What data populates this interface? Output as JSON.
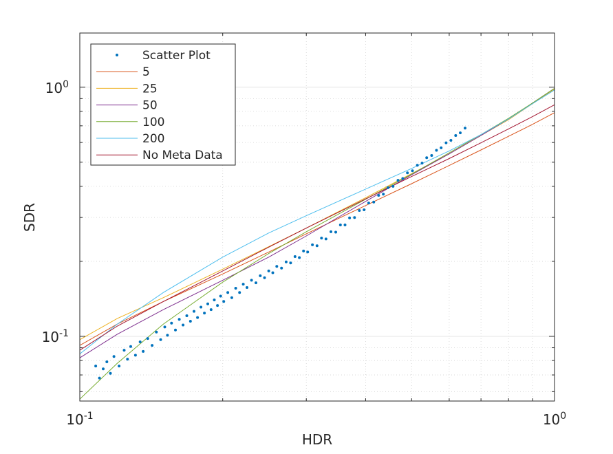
{
  "chart_data": {
    "type": "scatter+line",
    "title": "",
    "xlabel": "HDR",
    "ylabel": "SDR",
    "xscale": "log",
    "yscale": "log",
    "xlim": [
      0.1,
      1.0
    ],
    "ylim": [
      0.055,
      1.65
    ],
    "grid": true,
    "minor_grid": true,
    "legend_position": "top-left",
    "x_ticks": [
      {
        "value": 0.1,
        "base": "10",
        "exp": "-1"
      },
      {
        "value": 1.0,
        "base": "10",
        "exp": "0"
      }
    ],
    "y_ticks": [
      {
        "value": 0.1,
        "base": "10",
        "exp": "-1"
      },
      {
        "value": 1.0,
        "base": "10",
        "exp": "0"
      }
    ],
    "scatter": {
      "name": "Scatter Plot",
      "color": "#0072BD",
      "x": [
        0.108,
        0.11,
        0.112,
        0.114,
        0.116,
        0.118,
        0.121,
        0.124,
        0.126,
        0.128,
        0.131,
        0.134,
        0.136,
        0.139,
        0.142,
        0.145,
        0.148,
        0.151,
        0.153,
        0.156,
        0.159,
        0.162,
        0.165,
        0.168,
        0.171,
        0.174,
        0.177,
        0.18,
        0.183,
        0.186,
        0.189,
        0.192,
        0.195,
        0.198,
        0.201,
        0.205,
        0.209,
        0.213,
        0.217,
        0.221,
        0.225,
        0.23,
        0.235,
        0.24,
        0.245,
        0.25,
        0.255,
        0.26,
        0.266,
        0.272,
        0.278,
        0.284,
        0.29,
        0.296,
        0.302,
        0.309,
        0.316,
        0.323,
        0.33,
        0.338,
        0.346,
        0.354,
        0.362,
        0.37,
        0.379,
        0.388,
        0.397,
        0.406,
        0.416,
        0.426,
        0.436,
        0.446,
        0.457,
        0.468,
        0.479,
        0.49,
        0.502,
        0.514,
        0.526,
        0.538,
        0.551,
        0.564,
        0.577,
        0.591,
        0.605,
        0.619,
        0.633,
        0.648
      ],
      "y": [
        0.076,
        0.068,
        0.074,
        0.079,
        0.071,
        0.083,
        0.076,
        0.088,
        0.081,
        0.091,
        0.084,
        0.095,
        0.087,
        0.098,
        0.092,
        0.104,
        0.097,
        0.109,
        0.101,
        0.113,
        0.106,
        0.117,
        0.111,
        0.121,
        0.115,
        0.126,
        0.119,
        0.131,
        0.124,
        0.135,
        0.128,
        0.14,
        0.133,
        0.145,
        0.138,
        0.15,
        0.143,
        0.156,
        0.15,
        0.162,
        0.157,
        0.168,
        0.164,
        0.175,
        0.172,
        0.183,
        0.18,
        0.191,
        0.188,
        0.199,
        0.197,
        0.209,
        0.207,
        0.22,
        0.218,
        0.233,
        0.231,
        0.248,
        0.246,
        0.263,
        0.262,
        0.28,
        0.28,
        0.299,
        0.3,
        0.32,
        0.322,
        0.343,
        0.346,
        0.368,
        0.372,
        0.395,
        0.4,
        0.423,
        0.43,
        0.453,
        0.462,
        0.486,
        0.496,
        0.521,
        0.532,
        0.558,
        0.571,
        0.598,
        0.612,
        0.64,
        0.656,
        0.685
      ]
    },
    "series": [
      {
        "name": "5",
        "color": "#D95319",
        "x": [
          0.1,
          0.12,
          0.15,
          0.2,
          0.25,
          0.3,
          0.4,
          0.5,
          0.6,
          0.7,
          0.8,
          0.9,
          1.0
        ],
        "y": [
          0.092,
          0.112,
          0.138,
          0.178,
          0.218,
          0.258,
          0.335,
          0.41,
          0.485,
          0.56,
          0.635,
          0.71,
          0.79
        ]
      },
      {
        "name": "25",
        "color": "#EDB120",
        "x": [
          0.1,
          0.12,
          0.15,
          0.2,
          0.25,
          0.3,
          0.4,
          0.5,
          0.6,
          0.7,
          0.8,
          0.9,
          1.0
        ],
        "y": [
          0.097,
          0.118,
          0.143,
          0.186,
          0.229,
          0.272,
          0.36,
          0.45,
          0.54,
          0.64,
          0.74,
          0.86,
          0.98
        ]
      },
      {
        "name": "50",
        "color": "#7E2F8E",
        "x": [
          0.1,
          0.12,
          0.15,
          0.2,
          0.25,
          0.3,
          0.4,
          0.5,
          0.6,
          0.7,
          0.8,
          0.9,
          1.0
        ],
        "y": [
          0.082,
          0.102,
          0.128,
          0.168,
          0.208,
          0.253,
          0.348,
          0.445,
          0.54,
          0.64,
          0.745,
          0.865,
          0.99
        ]
      },
      {
        "name": "100",
        "color": "#77AC30",
        "x": [
          0.1,
          0.12,
          0.15,
          0.2,
          0.25,
          0.3,
          0.4,
          0.5,
          0.6,
          0.7,
          0.8,
          0.9,
          1.0
        ],
        "y": [
          0.056,
          0.078,
          0.112,
          0.165,
          0.215,
          0.263,
          0.355,
          0.448,
          0.545,
          0.645,
          0.75,
          0.865,
          0.99
        ]
      },
      {
        "name": "200",
        "color": "#4DBEEE",
        "x": [
          0.1,
          0.12,
          0.15,
          0.2,
          0.25,
          0.3,
          0.4,
          0.5,
          0.6,
          0.7,
          0.8,
          0.9,
          1.0
        ],
        "y": [
          0.085,
          0.112,
          0.15,
          0.208,
          0.26,
          0.305,
          0.39,
          0.472,
          0.555,
          0.645,
          0.745,
          0.86,
          0.975
        ]
      },
      {
        "name": "No Meta Data",
        "color": "#A2142F",
        "x": [
          0.1,
          0.12,
          0.15,
          0.2,
          0.25,
          0.3,
          0.4,
          0.5,
          0.6,
          0.7,
          0.8,
          0.9,
          1.0
        ],
        "y": [
          0.088,
          0.11,
          0.138,
          0.183,
          0.228,
          0.272,
          0.356,
          0.438,
          0.517,
          0.598,
          0.68,
          0.763,
          0.85
        ]
      }
    ]
  }
}
